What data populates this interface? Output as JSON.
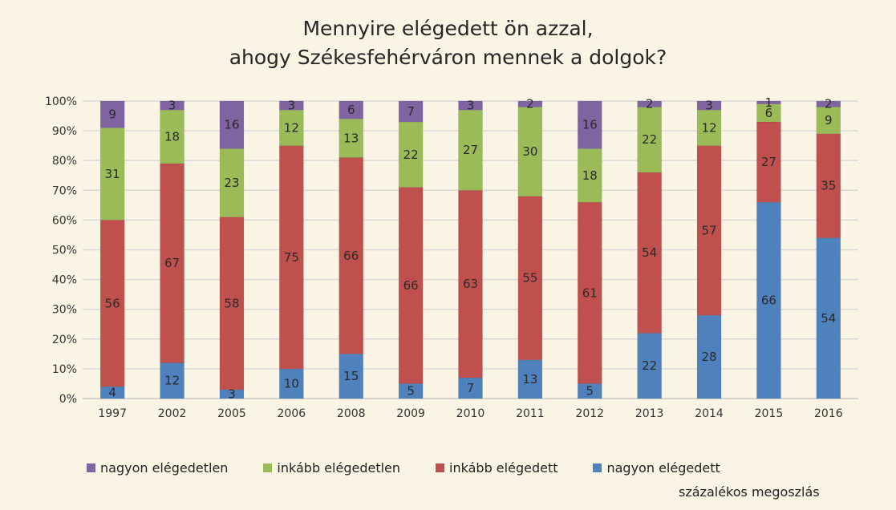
{
  "chart_data": {
    "type": "bar",
    "stacked": true,
    "title_lines": [
      "Mennyire elégedett ön azzal,",
      "ahogy Székesfehérváron mennek a dolgok?"
    ],
    "xlabel": "",
    "ylabel": "",
    "unit_note": "százalékos megoszlás",
    "categories": [
      "1997",
      "2002",
      "2005",
      "2006",
      "2008",
      "2009",
      "2010",
      "2011",
      "2012",
      "2013",
      "2014",
      "2015",
      "2016"
    ],
    "ylim": [
      0,
      100
    ],
    "yticks": [
      "0%",
      "10%",
      "20%",
      "30%",
      "40%",
      "50%",
      "60%",
      "70%",
      "80%",
      "90%",
      "100%"
    ],
    "grid": true,
    "legend_position": "bottom",
    "series": [
      {
        "name": "nagyon elégedett",
        "color": "#4f81bd",
        "values": [
          4,
          12,
          3,
          10,
          15,
          5,
          7,
          13,
          5,
          22,
          28,
          66,
          54
        ]
      },
      {
        "name": "inkább elégedett",
        "color": "#c0504d",
        "values": [
          56,
          67,
          58,
          75,
          66,
          66,
          63,
          55,
          61,
          54,
          57,
          27,
          35
        ]
      },
      {
        "name": "inkább elégedetlen",
        "color": "#9bbb59",
        "values": [
          31,
          18,
          23,
          12,
          13,
          22,
          27,
          30,
          18,
          22,
          12,
          6,
          9
        ]
      },
      {
        "name": "nagyon elégedetlen",
        "color": "#8064a2",
        "values": [
          9,
          3,
          16,
          3,
          6,
          7,
          3,
          2,
          16,
          2,
          3,
          1,
          2
        ]
      }
    ],
    "legend_order": [
      "nagyon elégedetlen",
      "inkább elégedetlen",
      "inkább elégedett",
      "nagyon elégedett"
    ]
  }
}
